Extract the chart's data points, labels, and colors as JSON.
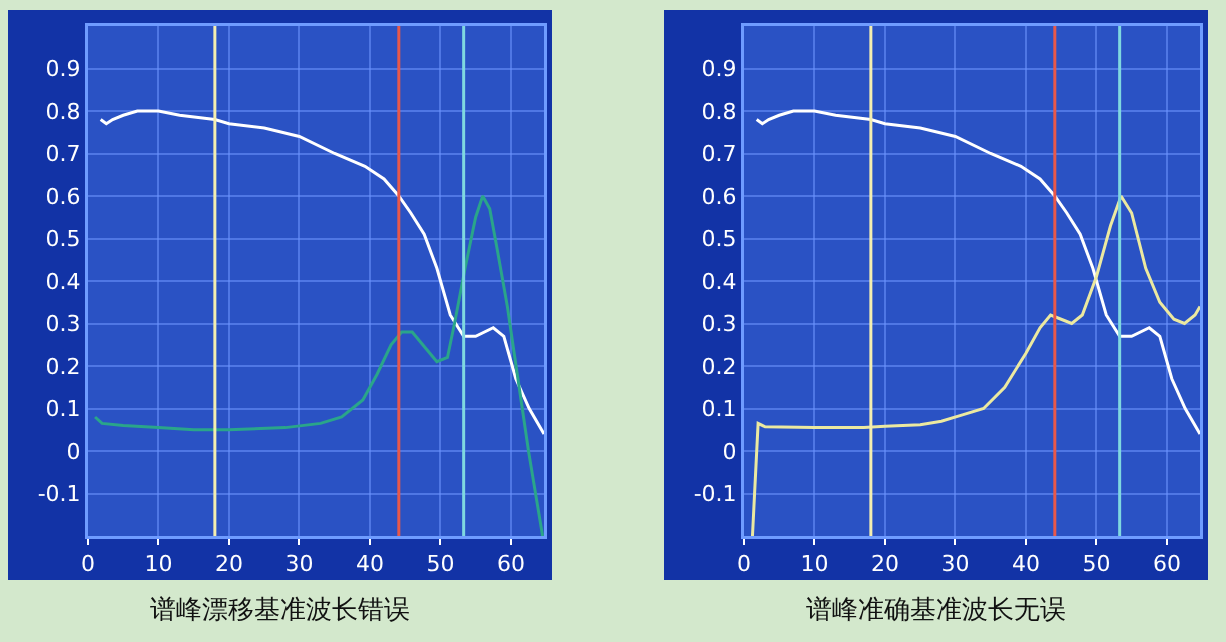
{
  "chart_data": [
    {
      "type": "line",
      "title": "谱峰漂移基准波长错误",
      "xlim": [
        0,
        64.7
      ],
      "ylim": [
        -0.2,
        1.0
      ],
      "xticks": [
        0,
        10,
        20,
        30,
        40,
        50,
        60
      ],
      "yticks": [
        -0.1,
        0,
        0.1,
        0.2,
        0.3,
        0.4,
        0.5,
        0.6,
        0.7,
        0.8,
        0.9
      ],
      "grid": true,
      "series": [
        {
          "color": "#ffffff",
          "x": [
            1.8,
            2.6,
            3.5,
            5,
            7,
            10,
            13,
            18,
            20,
            25,
            30,
            35,
            39.3,
            42,
            44.1,
            45.8,
            47.7,
            49.5,
            51.4,
            53.3,
            55,
            57.5,
            59,
            60.7,
            62.6,
            64.7
          ],
          "values": [
            0.78,
            0.77,
            0.78,
            0.79,
            0.8,
            0.8,
            0.79,
            0.78,
            0.77,
            0.76,
            0.74,
            0.7,
            0.67,
            0.64,
            0.6,
            0.56,
            0.51,
            0.43,
            0.32,
            0.27,
            0.27,
            0.29,
            0.27,
            0.17,
            0.1,
            0.04
          ]
        },
        {
          "color": "#2aa58a",
          "x": [
            1,
            2,
            5,
            10,
            15,
            20,
            28,
            33,
            36,
            39,
            41,
            43,
            44.5,
            46,
            48,
            49.5,
            51,
            52,
            53.5,
            55,
            56,
            57,
            58,
            59.5,
            61,
            62.5,
            64.5
          ],
          "values": [
            0.08,
            0.065,
            0.06,
            0.055,
            0.05,
            0.05,
            0.055,
            0.065,
            0.08,
            0.12,
            0.18,
            0.25,
            0.28,
            0.28,
            0.24,
            0.21,
            0.22,
            0.3,
            0.43,
            0.55,
            0.6,
            0.57,
            0.48,
            0.34,
            0.17,
            0.0,
            -0.2
          ]
        }
      ],
      "ref_lines": [
        {
          "axis": "x",
          "value": 18,
          "color": "#f4eeb0"
        },
        {
          "axis": "x",
          "value": 44.1,
          "color": "#e8584a"
        },
        {
          "axis": "x",
          "value": 53.3,
          "color": "#7fd8e0"
        }
      ]
    },
    {
      "type": "line",
      "title": "谱峰准确基准波长无误",
      "xlim": [
        0,
        64.7
      ],
      "ylim": [
        -0.2,
        1.0
      ],
      "xticks": [
        0,
        10,
        20,
        30,
        40,
        50,
        60
      ],
      "yticks": [
        -0.1,
        0,
        0.1,
        0.2,
        0.3,
        0.4,
        0.5,
        0.6,
        0.7,
        0.8,
        0.9
      ],
      "grid": true,
      "series": [
        {
          "color": "#ffffff",
          "x": [
            1.8,
            2.6,
            3.5,
            5,
            7,
            10,
            13,
            18,
            20,
            25,
            30,
            35,
            39.3,
            42,
            44.1,
            45.8,
            47.7,
            49.5,
            51.4,
            53.3,
            55,
            57.5,
            59,
            60.7,
            62.6,
            64.7
          ],
          "values": [
            0.78,
            0.77,
            0.78,
            0.79,
            0.8,
            0.8,
            0.79,
            0.78,
            0.77,
            0.76,
            0.74,
            0.7,
            0.67,
            0.64,
            0.6,
            0.56,
            0.51,
            0.43,
            0.32,
            0.27,
            0.27,
            0.29,
            0.27,
            0.17,
            0.1,
            0.04
          ]
        },
        {
          "color": "#ece9a0",
          "x": [
            1.2,
            2,
            3,
            10,
            17,
            20,
            25,
            28,
            31,
            34,
            37,
            40,
            42,
            43.5,
            45,
            46.5,
            48,
            50,
            52,
            53.5,
            55,
            57,
            59,
            61,
            62.5,
            64,
            64.7
          ],
          "values": [
            -0.2,
            0.065,
            0.057,
            0.055,
            0.055,
            0.058,
            0.062,
            0.07,
            0.085,
            0.1,
            0.15,
            0.23,
            0.29,
            0.32,
            0.31,
            0.3,
            0.32,
            0.41,
            0.53,
            0.6,
            0.56,
            0.43,
            0.35,
            0.31,
            0.3,
            0.32,
            0.34
          ]
        }
      ],
      "ref_lines": [
        {
          "axis": "x",
          "value": 18,
          "color": "#f4eeb0"
        },
        {
          "axis": "x",
          "value": 44.1,
          "color": "#e8584a"
        },
        {
          "axis": "x",
          "value": 53.3,
          "color": "#7fd8e0"
        }
      ]
    }
  ]
}
